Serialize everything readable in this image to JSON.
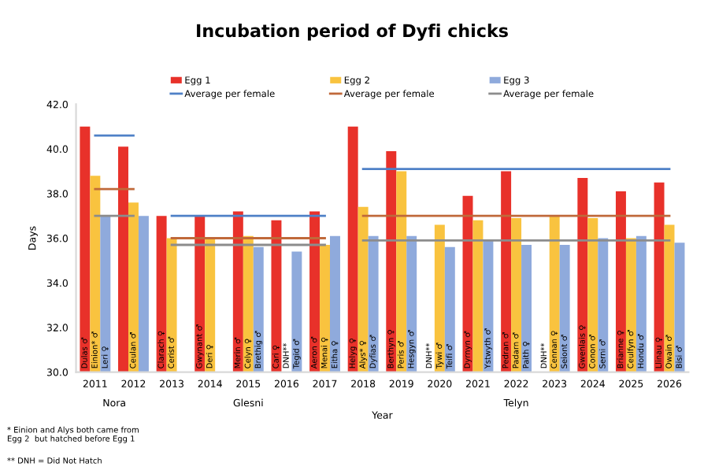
{
  "chart_data": {
    "type": "bar",
    "title": "Incubation period of Dyfi chicks",
    "xlabel": "Year",
    "ylabel": "Days",
    "categories": [
      "2011",
      "2012",
      "2013",
      "2014",
      "2015",
      "2016",
      "2017",
      "2018",
      "2019",
      "2020",
      "2021",
      "2022",
      "2023",
      "2024",
      "2025",
      "2026"
    ],
    "series": [
      {
        "name": "Egg 1",
        "color": "#e8312a",
        "values": [
          41.0,
          40.1,
          37.0,
          37.0,
          37.2,
          36.8,
          37.2,
          41.0,
          39.9,
          null,
          37.9,
          39.0,
          null,
          38.7,
          38.1,
          38.5
        ],
        "value_labels": [
          "Dulas ♂",
          null,
          "Clarach ♀",
          "Gwynant ♂",
          "Merin ♂",
          "Cari ♀",
          "Aeron ♂",
          "Helyg ♀",
          "Berthyn ♀",
          "DNH**",
          "Dyrnyn ♂",
          "Pedran ♂",
          "DNH**",
          "Gwenlais ♀",
          "Brianne ♀",
          "Llinau ♀"
        ]
      },
      {
        "name": "Egg 2",
        "color": "#f9c33f",
        "values": [
          38.8,
          37.6,
          36.0,
          36.0,
          36.1,
          null,
          35.7,
          37.4,
          39.0,
          36.6,
          36.8,
          36.9,
          37.0,
          36.9,
          36.0,
          36.6
        ],
        "value_labels": [
          "Einion* ♂",
          "Ceulan ♂",
          "Cerist ♂",
          "Deri ♀",
          "Celyn ♀",
          "DNH**",
          "Menai ♀",
          "Alys* ♀",
          "Peris ♂",
          "Tywi ♂",
          null,
          "Padarn ♂",
          "Cennan ♀",
          "Conon ♂",
          "Ceulfyn ♂",
          "Owain ♂"
        ]
      },
      {
        "name": "Egg 3",
        "color": "#8faadc",
        "values": [
          37.0,
          37.0,
          null,
          null,
          35.6,
          35.4,
          36.1,
          36.1,
          36.1,
          35.6,
          35.9,
          35.7,
          35.7,
          36.0,
          36.1,
          35.8
        ],
        "value_labels": [
          "Leri ♀",
          null,
          null,
          null,
          "Brethig ♂",
          "Tegid ♂",
          "Eitha ♀",
          "Dyfias ♂",
          "Hesgyn ♂",
          "Teifi ♂",
          "Ystwyth ♂",
          "Paith ♀",
          "Seiont ♂",
          "Serni ♂",
          "Hondu ♂",
          "Bisi ♂"
        ]
      },
      {
        "name": "Average per female",
        "type": "line",
        "color": "#4f81c7",
        "values": [
          40.6,
          40.6,
          null,
          null,
          null,
          null,
          null,
          null,
          null,
          null,
          null,
          null,
          null,
          null,
          null,
          null
        ]
      },
      {
        "name": "Average per female",
        "type": "line",
        "color": "#c0693a",
        "values": [
          38.2,
          38.2,
          null,
          null,
          null,
          null,
          null,
          null,
          null,
          null,
          null,
          null,
          null,
          null,
          null,
          null
        ]
      },
      {
        "name": "Average per female",
        "type": "line",
        "color": "#8c8c8c",
        "values": [
          37.0,
          37.0,
          null,
          null,
          null,
          null,
          null,
          null,
          null,
          null,
          null,
          null,
          null,
          null,
          null,
          null
        ]
      },
      {
        "type": "line",
        "color": "#4f81c7",
        "values": [
          null,
          null,
          37.0,
          37.0,
          37.0,
          37.0,
          37.0,
          null,
          null,
          null,
          null,
          null,
          null,
          null,
          null,
          null
        ]
      },
      {
        "type": "line",
        "color": "#c0693a",
        "values": [
          null,
          null,
          36.0,
          36.0,
          36.0,
          36.0,
          36.0,
          null,
          null,
          null,
          null,
          null,
          null,
          null,
          null,
          null
        ]
      },
      {
        "type": "line",
        "color": "#8c8c8c",
        "values": [
          null,
          null,
          35.7,
          35.7,
          35.7,
          35.7,
          35.7,
          null,
          null,
          null,
          null,
          null,
          null,
          null,
          null,
          null
        ]
      },
      {
        "type": "line",
        "color": "#4f81c7",
        "values": [
          null,
          null,
          null,
          null,
          null,
          null,
          null,
          39.1,
          39.1,
          39.1,
          39.1,
          39.1,
          39.1,
          39.1,
          39.1,
          39.1
        ]
      },
      {
        "type": "line",
        "color": "#c0693a",
        "values": [
          null,
          null,
          null,
          null,
          null,
          null,
          null,
          37.0,
          37.0,
          37.0,
          37.0,
          37.0,
          37.0,
          37.0,
          37.0,
          37.0
        ]
      },
      {
        "type": "line",
        "color": "#8c8c8c",
        "values": [
          null,
          null,
          null,
          null,
          null,
          null,
          null,
          35.9,
          35.9,
          35.9,
          35.9,
          35.9,
          35.9,
          35.9,
          35.9,
          35.9
        ]
      }
    ],
    "ylim": [
      30,
      42
    ],
    "yticks": [
      {
        "value": 30,
        "label": "30.0"
      },
      {
        "value": 32,
        "label": "32.0"
      },
      {
        "value": 34,
        "label": "34.0"
      },
      {
        "value": 36,
        "label": "36.0"
      },
      {
        "value": 38,
        "label": "38.0"
      },
      {
        "value": 40,
        "label": "40.0"
      },
      {
        "value": 42,
        "label": "42.0"
      }
    ],
    "grid": false,
    "legend": "top",
    "annotations": [
      "Nora",
      "Glesni",
      "Telyn",
      "* Einion and Alys both came from\nEgg 2  but hatched before Egg 1",
      "** DNH = Did Not Hatch"
    ]
  }
}
